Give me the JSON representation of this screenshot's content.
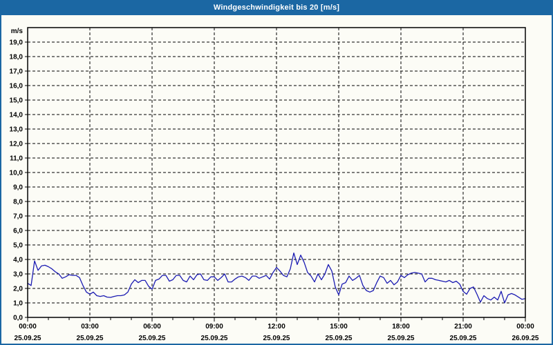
{
  "window": {
    "title": "Windgeschwindigkeit bis 20 [m/s]"
  },
  "colors": {
    "titlebar_bg": "#1b67a3",
    "window_border": "#1b67a3",
    "panel_bg": "#fcfcf6",
    "title_text": "#ffffff",
    "line": "#1a1ab2",
    "grid": "#000000",
    "axis": "#000000",
    "tick_label": "#000000"
  },
  "chart_data": {
    "type": "line",
    "title": "Windgeschwindigkeit bis 20 [m/s]",
    "unit_label": "m/s",
    "ylim": [
      0,
      20
    ],
    "grid": "dashed",
    "y_tick_labels": [
      "0,0",
      "1,0",
      "2,0",
      "3,0",
      "4,0",
      "5,0",
      "6,0",
      "7,0",
      "8,0",
      "9,0",
      "10,0",
      "11,0",
      "12,0",
      "13,0",
      "14,0",
      "15,0",
      "16,0",
      "17,0",
      "18,0",
      "19,0"
    ],
    "x_ticks": [
      {
        "time": "00:00",
        "date": "25.09.25"
      },
      {
        "time": "03:00",
        "date": "25.09.25"
      },
      {
        "time": "06:00",
        "date": "25.09.25"
      },
      {
        "time": "09:00",
        "date": "25.09.25"
      },
      {
        "time": "12:00",
        "date": "25.09.25"
      },
      {
        "time": "15:00",
        "date": "25.09.25"
      },
      {
        "time": "18:00",
        "date": "25.09.25"
      },
      {
        "time": "21:00",
        "date": "25.09.25"
      },
      {
        "time": "00:00",
        "date": "26.09.25"
      }
    ],
    "x_minor_per_major": 3,
    "series": [
      {
        "name": "Windgeschwindigkeit",
        "start_min": 0,
        "interval_min": 10,
        "values": [
          2.35,
          2.2,
          3.9,
          3.25,
          3.55,
          3.6,
          3.5,
          3.35,
          3.15,
          3.0,
          2.7,
          2.8,
          2.95,
          2.9,
          2.9,
          2.75,
          2.2,
          1.75,
          1.6,
          1.75,
          1.5,
          1.45,
          1.5,
          1.4,
          1.38,
          1.45,
          1.5,
          1.5,
          1.55,
          1.75,
          2.3,
          2.6,
          2.4,
          2.55,
          2.55,
          2.15,
          1.95,
          2.55,
          2.65,
          2.9,
          2.9,
          2.5,
          2.6,
          2.9,
          2.9,
          2.55,
          2.45,
          2.85,
          2.6,
          2.95,
          3.0,
          2.6,
          2.55,
          2.8,
          2.8,
          2.55,
          2.75,
          3.0,
          2.45,
          2.45,
          2.65,
          2.8,
          2.85,
          2.75,
          2.55,
          2.85,
          2.85,
          2.7,
          2.8,
          2.9,
          2.65,
          3.1,
          3.45,
          3.2,
          2.9,
          2.8,
          3.35,
          4.45,
          3.65,
          4.3,
          3.8,
          3.1,
          2.85,
          2.45,
          3.0,
          2.6,
          3.0,
          3.65,
          3.2,
          2.1,
          1.55,
          2.3,
          2.4,
          2.85,
          2.55,
          2.7,
          2.9,
          2.2,
          1.85,
          1.75,
          1.85,
          2.4,
          2.85,
          2.75,
          2.35,
          2.55,
          2.25,
          2.45,
          2.9,
          2.75,
          2.95,
          3.05,
          3.1,
          3.05,
          3.0,
          2.45,
          2.7,
          2.7,
          2.6,
          2.55,
          2.5,
          2.45,
          2.55,
          2.4,
          2.5,
          2.3,
          1.8,
          1.6,
          2.0,
          2.1,
          1.6,
          1.05,
          1.5,
          1.3,
          1.2,
          1.4,
          1.2,
          1.8,
          1.0,
          1.55,
          1.65,
          1.55,
          1.4,
          1.25,
          1.3
        ]
      }
    ]
  }
}
